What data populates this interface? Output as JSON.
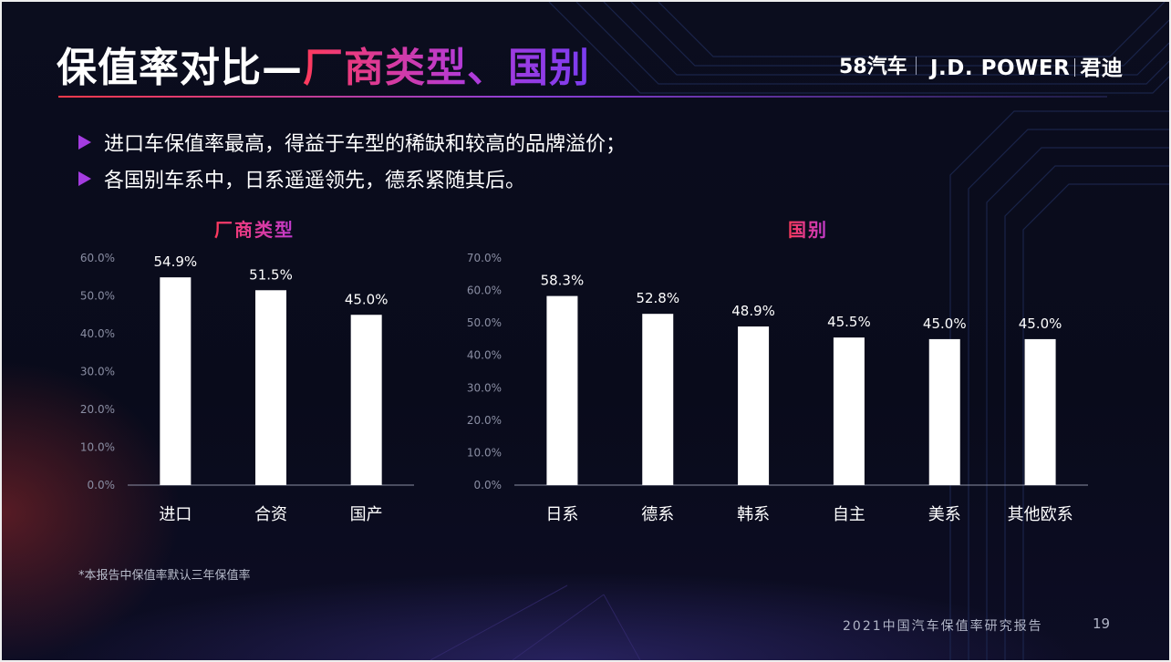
{
  "slide": {
    "title_main": "保值率对比—",
    "title_highlight": "厂商类型、国别",
    "brand_58": "58汽车",
    "brand_jd": "J.D. POWER",
    "brand_jd_cn": "君迪",
    "bullets": [
      "进口车保值率最高，得益于车型的稀缺和较高的品牌溢价；",
      "各国别车系中，日系遥遥领先，德系紧随其后。"
    ],
    "footnote": "*本报告中保值率默认三年保值率",
    "report_title": "2021中国汽车保值率研究报告",
    "page_number": "19",
    "colors": {
      "background": "#0a0c1c",
      "accent_red": "#ff3a5c",
      "accent_purple": "#8b3fd8",
      "bar": "#ffffff",
      "axis_text": "#8a8ea3"
    }
  },
  "chart_data": [
    {
      "type": "bar",
      "title": "厂商类型",
      "categories": [
        "进口",
        "合资",
        "国产"
      ],
      "values": [
        54.9,
        51.5,
        45.0
      ],
      "value_labels": [
        "54.9%",
        "51.5%",
        "45.0%"
      ],
      "ylim": [
        0,
        60
      ],
      "yticks": [
        "0.0%",
        "10.0%",
        "20.0%",
        "30.0%",
        "40.0%",
        "50.0%",
        "60.0%"
      ],
      "grid": false,
      "xlabel": "",
      "ylabel": ""
    },
    {
      "type": "bar",
      "title": "国别",
      "categories": [
        "日系",
        "德系",
        "韩系",
        "自主",
        "美系",
        "其他欧系"
      ],
      "values": [
        58.3,
        52.8,
        48.9,
        45.5,
        45.0,
        45.0
      ],
      "value_labels": [
        "58.3%",
        "52.8%",
        "48.9%",
        "45.5%",
        "45.0%",
        "45.0%"
      ],
      "ylim": [
        0,
        70
      ],
      "yticks": [
        "0.0%",
        "10.0%",
        "20.0%",
        "30.0%",
        "40.0%",
        "50.0%",
        "60.0%",
        "70.0%"
      ],
      "grid": false,
      "xlabel": "",
      "ylabel": ""
    }
  ]
}
